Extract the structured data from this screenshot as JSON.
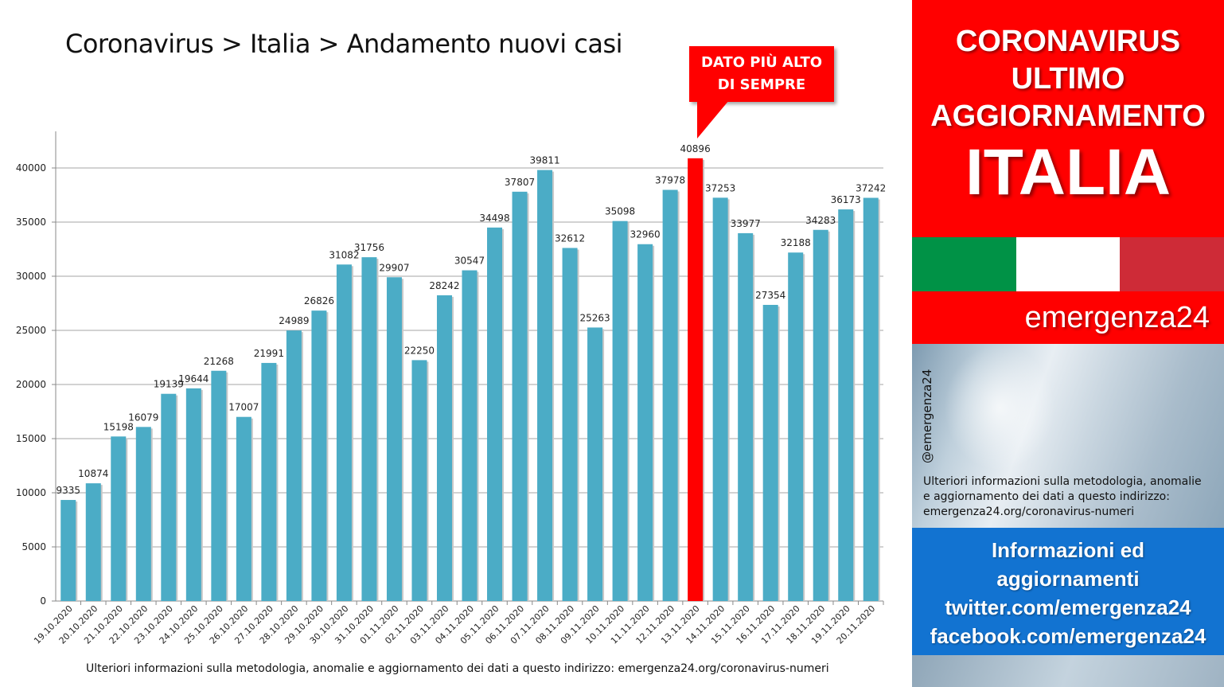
{
  "title": "Coronavirus > Italia > Andamento nuovi casi",
  "callout": {
    "line1": "DATO PIÙ ALTO",
    "line2": "DI SEMPRE"
  },
  "footer_note": "Ulteriori informazioni sulla metodologia, anomalie e aggiornamento dei dati a questo indirizzo: emergenza24.org/coronavirus-numeri",
  "panel": {
    "line1": "CORONAVIRUS",
    "line2": "ULTIMO",
    "line3": "AGGIORNAMENTO",
    "country": "ITALIA",
    "brand": "emergenza24",
    "handle": "@emergenza24",
    "note1": "Ulteriori informazioni sulla metodologia, anomalie",
    "note2": "e aggiornamento dei dati a questo indirizzo:",
    "note3": "emergenza24.org/coronavirus-numeri",
    "info1": "Informazioni ed",
    "info2": "aggiornamenti",
    "info3": "twitter.com/emergenza24",
    "info4": "facebook.com/emergenza24"
  },
  "colors": {
    "bar": "#4bacc6",
    "highlight": "#ff0000",
    "flag_green": "#009246",
    "flag_white": "#ffffff",
    "flag_red": "#ce2b37",
    "panel_blue": "#1273d1"
  },
  "chart_data": {
    "type": "bar",
    "categories": [
      "19.10.2020",
      "20.10.2020",
      "21.10.2020",
      "22.10.2020",
      "23.10.2020",
      "24.10.2020",
      "25.10.2020",
      "26.10.2020",
      "27.10.2020",
      "28.10.2020",
      "29.10.2020",
      "30.10.2020",
      "31.10.2020",
      "01.11.2020",
      "02.11.2020",
      "03.11.2020",
      "04.11.2020",
      "05.11.2020",
      "06.11.2020",
      "07.11.2020",
      "08.11.2020",
      "09.11.2020",
      "10.11.2020",
      "11.11.2020",
      "12.11.2020",
      "13.11.2020",
      "14.11.2020",
      "15.11.2020",
      "16.11.2020",
      "17.11.2020",
      "18.11.2020",
      "19.11.2020",
      "20.11.2020"
    ],
    "values": [
      9335,
      10874,
      15198,
      16079,
      19139,
      19644,
      21268,
      17007,
      21991,
      24989,
      26826,
      31082,
      31756,
      29907,
      22250,
      28242,
      30547,
      34498,
      37807,
      39811,
      32612,
      25263,
      35098,
      32960,
      37978,
      40896,
      37253,
      33977,
      27354,
      32188,
      34283,
      36173,
      37242
    ],
    "highlight_category": "13.11.2020",
    "yticks": [
      0,
      5000,
      10000,
      15000,
      20000,
      25000,
      30000,
      35000,
      40000
    ],
    "ylim": [
      0,
      43333
    ],
    "grid": true,
    "legend": "none"
  }
}
